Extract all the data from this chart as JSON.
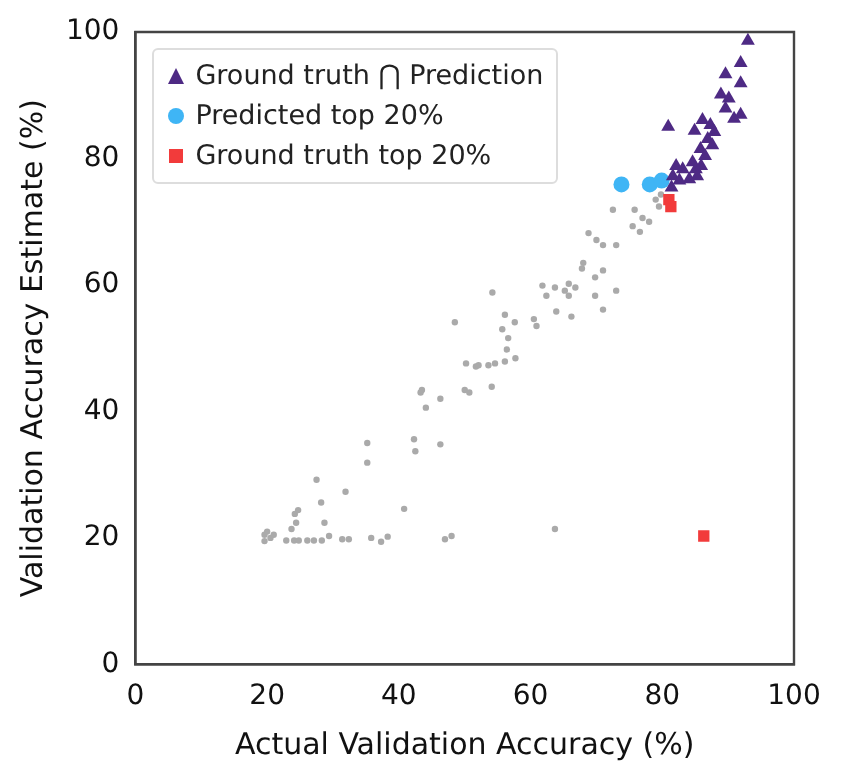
{
  "chart_data": {
    "type": "scatter",
    "xlabel": "Actual Validation Accuracy (%)",
    "ylabel": "Validation Accuracy Estimate (%)",
    "xlim": [
      0,
      100
    ],
    "xticks": [
      0,
      20,
      40,
      60,
      80,
      100
    ],
    "ylim": [
      0,
      100
    ],
    "yticks": [
      0,
      20,
      40,
      60,
      80,
      100
    ],
    "grid": false,
    "legend": "top left",
    "series": [
      {
        "name": "Ground truth ⋂ Prediction",
        "color": "#4e2a84",
        "marker": "triangle",
        "x": [
          93.0,
          91.9,
          89.6,
          91.9,
          88.9,
          90.1,
          89.6,
          90.9,
          91.9,
          80.9,
          84.9,
          86.1,
          87.3,
          87.9,
          86.9,
          87.6,
          85.8,
          86.5,
          84.6,
          85.1,
          82.1,
          83.1,
          84.1,
          81.6,
          82.6,
          81.4,
          85.3,
          85.9
        ],
        "values": [
          98.6,
          95.1,
          93.3,
          91.9,
          90.1,
          89.5,
          87.9,
          86.3,
          86.9,
          85.0,
          84.4,
          86.1,
          85.3,
          84.2,
          83.1,
          82.1,
          81.5,
          80.4,
          79.4,
          78.3,
          78.8,
          78.3,
          76.7,
          77.2,
          76.5,
          75.4,
          77.2,
          78.8
        ]
      },
      {
        "name": "Predicted top 20%",
        "color": "#3fb5f5",
        "marker": "circle",
        "x": [
          73.8,
          78.1,
          79.9
        ],
        "values": [
          75.9,
          75.9,
          76.5
        ]
      },
      {
        "name": "Ground truth top 20%",
        "color": "#f23b3b",
        "marker": "square",
        "x": [
          81.0,
          81.3,
          86.3
        ],
        "values": [
          73.5,
          72.4,
          20.3
        ]
      },
      {
        "color": "#aaaaaa",
        "marker": "circle",
        "x": [
          19.6,
          19.6,
          20.0,
          20.5,
          21.0,
          22.9,
          24.1,
          24.8,
          26.1,
          27.1,
          28.3,
          23.7,
          24.4,
          24.2,
          24.7,
          27.5,
          28.2,
          28.7,
          29.4,
          31.4,
          32.4,
          31.9,
          35.2,
          35.2,
          35.8,
          37.3,
          38.3,
          40.8,
          42.3,
          42.5,
          43.3,
          43.5,
          44.1,
          46.3,
          46.3,
          47.0,
          48.0,
          48.5,
          50.0,
          50.7,
          50.2,
          51.7,
          52.1,
          53.6,
          54.6,
          54.1,
          54.2,
          55.7,
          56.1,
          56.6,
          56.4,
          56.1,
          57.7,
          57.6,
          60.5,
          60.9,
          61.8,
          62.4,
          63.7,
          63.9,
          63.7,
          65.2,
          65.8,
          65.8,
          66.2,
          66.8,
          67.8,
          69.8,
          71.0,
          69.8,
          71.0,
          73.0,
          72.5,
          68.8,
          70.0,
          71.0,
          73.0,
          75.8,
          77.0,
          75.5,
          76.6,
          78.0,
          79.0,
          79.5,
          79.8,
          68.0
        ],
        "values": [
          19.5,
          20.5,
          21.0,
          20.0,
          20.5,
          19.6,
          19.6,
          19.6,
          19.6,
          19.6,
          19.6,
          21.4,
          22.4,
          23.8,
          24.4,
          29.2,
          25.6,
          22.4,
          20.3,
          19.8,
          19.8,
          27.3,
          35.0,
          31.9,
          20.0,
          19.4,
          20.2,
          24.6,
          35.6,
          33.7,
          43.0,
          43.4,
          40.6,
          42.0,
          34.8,
          19.8,
          20.3,
          54.1,
          43.4,
          43.0,
          47.6,
          47.1,
          47.3,
          47.3,
          47.6,
          43.9,
          58.8,
          53.0,
          55.3,
          51.6,
          49.8,
          47.9,
          48.4,
          54.1,
          54.6,
          53.5,
          59.9,
          58.3,
          59.6,
          55.8,
          21.4,
          59.1,
          60.2,
          58.3,
          55.0,
          59.6,
          62.6,
          61.2,
          62.3,
          58.3,
          56.1,
          59.1,
          71.9,
          68.2,
          67.1,
          66.3,
          66.3,
          71.9,
          70.6,
          69.3,
          68.4,
          70.0,
          73.5,
          72.4,
          74.3,
          63.5
        ]
      }
    ]
  }
}
